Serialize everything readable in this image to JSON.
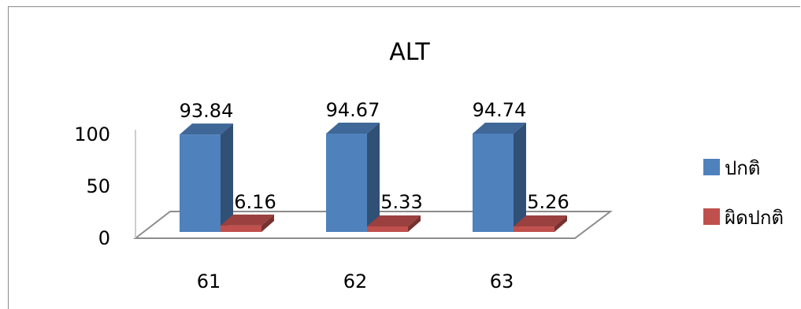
{
  "chart_data": {
    "type": "bar",
    "title": "ALT",
    "xlabel": "",
    "ylabel": "",
    "categories": [
      "61",
      "62",
      "63"
    ],
    "series": [
      {
        "name": "ปกติ",
        "values": [
          93.84,
          94.67,
          94.74
        ],
        "color": "#4f81bd"
      },
      {
        "name": "ผิดปกติ",
        "values": [
          6.16,
          5.33,
          5.26
        ],
        "color": "#c0504d"
      }
    ],
    "ylim": [
      0,
      100
    ],
    "yticks": [
      "0",
      "50",
      "100"
    ],
    "data_labels": [
      [
        "93.84",
        "94.67",
        "94.74"
      ],
      [
        "6.16",
        "5.33",
        "5.26"
      ]
    ],
    "legend_position": "right",
    "grid": false,
    "style": "3d-column"
  }
}
